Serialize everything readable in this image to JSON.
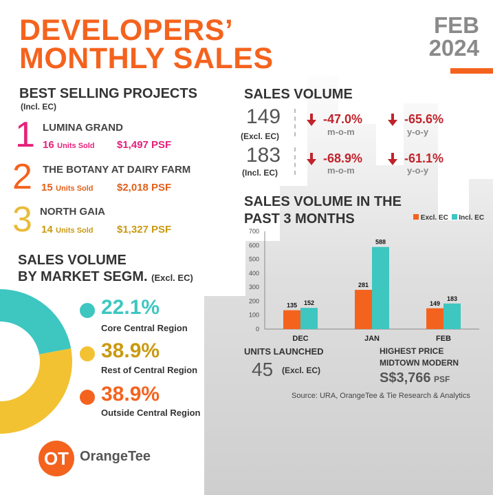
{
  "header": {
    "title_line1": "DEVELOPERS’",
    "title_line2": "MONTHLY SALES",
    "month": "FEB",
    "year": "2024"
  },
  "colors": {
    "orange": "#f4631e",
    "magenta": "#e6207a",
    "gold": "#d1a520",
    "teal": "#3ec6c1",
    "yellow": "#f2c232",
    "red": "#c0232b",
    "dark_orange": "#e0601a"
  },
  "best_selling": {
    "title": "BEST SELLING PROJECTS",
    "subtitle": "(Incl. EC)",
    "projects": [
      {
        "rank": "1",
        "name": "LUMINA GRAND",
        "units": "16",
        "units_label": "Units Sold",
        "psf": "$1,497 PSF"
      },
      {
        "rank": "2",
        "name": "THE BOTANY AT DAIRY FARM",
        "units": "15",
        "units_label": "Units Sold",
        "psf": "$2,018 PSF"
      },
      {
        "rank": "3",
        "name": "NORTH GAIA",
        "units": "14",
        "units_label": "Units Sold",
        "psf": "$1,327 PSF"
      }
    ]
  },
  "segment": {
    "title_line1": "SALES VOLUME",
    "title_line2": "BY MARKET SEGM.",
    "note": "(Excl. EC)",
    "items": [
      {
        "pct": "22.1%",
        "label": "Core Central Region",
        "value": 22.1,
        "icon": "teal-dot-icon"
      },
      {
        "pct": "38.9%",
        "label": "Rest of Central Region",
        "value": 38.9,
        "icon": "yellow-dot-icon"
      },
      {
        "pct": "38.9%",
        "label": "Outside Central Region",
        "value": 38.9,
        "icon": "orange-dot-icon"
      }
    ]
  },
  "sales_volume": {
    "title": "SALES VOLUME",
    "rows": [
      {
        "value": "149",
        "label": "(Excl. EC)",
        "mom": "-47.0%",
        "mom_label": "m-o-m",
        "yoy": "-65.6%",
        "yoy_label": "y-o-y"
      },
      {
        "value": "183",
        "label": "(Incl. EC)",
        "mom": "-68.9%",
        "mom_label": "m-o-m",
        "yoy": "-61.1%",
        "yoy_label": "y-o-y"
      }
    ]
  },
  "chart_data": {
    "type": "bar",
    "title": "SALES VOLUME IN THE PAST 3 MONTHS",
    "title_line1": "SALES VOLUME IN THE",
    "title_line2": "PAST 3 MONTHS",
    "categories": [
      "DEC",
      "JAN",
      "FEB"
    ],
    "series": [
      {
        "name": "Excl. EC",
        "values": [
          135,
          281,
          149
        ],
        "color": "#f4631e"
      },
      {
        "name": "Incl. EC",
        "values": [
          152,
          588,
          183
        ],
        "color": "#3ec6c1"
      }
    ],
    "ylim": [
      0,
      700
    ],
    "yticks": [
      "0",
      "100",
      "200",
      "300",
      "400",
      "500",
      "600",
      "700"
    ],
    "legend_position": "top-right",
    "grid": false
  },
  "units_launched": {
    "title": "UNITS LAUNCHED",
    "value": "45",
    "note": "(Excl. EC)"
  },
  "highest_price": {
    "title": "HIGHEST PRICE",
    "project": "MIDTOWN MODERN",
    "value": "S$3,766",
    "unit": "PSF"
  },
  "source": "Source: URA, OrangeTee & Tie Research & Analytics",
  "brand": {
    "logo_text": "OT",
    "name": "OrangeTee"
  }
}
